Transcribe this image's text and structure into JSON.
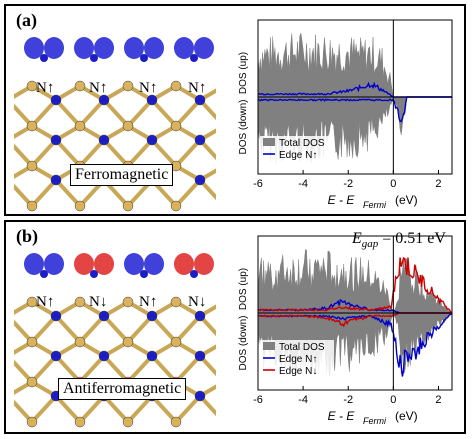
{
  "panels": [
    {
      "label": "(a)",
      "magnetic_label": "Ferromagnetic",
      "spin_labels": [
        "N↑",
        "N↑",
        "N↑",
        "N↑"
      ],
      "lobe_colors": [
        "#2b2bd6",
        "#2b2bd6",
        "#2b2bd6",
        "#2b2bd6"
      ],
      "legend": [
        {
          "label": "Total DOS",
          "color": "#808080"
        },
        {
          "label": "Edge N↑",
          "color": "#0000cc"
        }
      ],
      "egap": ""
    },
    {
      "label": "(b)",
      "magnetic_label": "Antiferromagnetic",
      "spin_labels": [
        "N↑",
        "N↓",
        "N↑",
        "N↓"
      ],
      "lobe_colors": [
        "#2b2bd6",
        "#e03030",
        "#2b2bd6",
        "#e03030"
      ],
      "legend": [
        {
          "label": "Total DOS",
          "color": "#808080"
        },
        {
          "label": "Edge N↑",
          "color": "#0000cc"
        },
        {
          "label": "Edge N↓",
          "color": "#cc0000"
        }
      ],
      "egap": "E_gap = 0.51 eV"
    }
  ],
  "axis": {
    "ylabel_up": "DOS (up)",
    "ylabel_down": "DOS (down)",
    "xlabel_main": "E - E",
    "xlabel_sub": "Fermi",
    "xlabel_unit": "(eV)",
    "egap_main": "E",
    "egap_sub": "gap",
    "egap_value": " = 0.51 eV",
    "ticks": [
      "-6",
      "-4",
      "-2",
      "0",
      "2"
    ]
  },
  "chart_data": [
    {
      "type": "area",
      "title": "",
      "xlabel": "E - E_Fermi (eV)",
      "ylabel": "DOS (up) / DOS (down)",
      "xlim": [
        -6,
        2.6
      ],
      "x_ticks": [
        -6,
        -4,
        -2,
        0,
        2
      ],
      "fermi_line_x": 0,
      "legend_placement": "bottom-left",
      "series": [
        {
          "name": "Total DOS",
          "x": [
            -6,
            -5,
            -4,
            -3,
            -2,
            -1.5,
            -1,
            -0.5,
            -0.1,
            0,
            0.2,
            0.4,
            0.6,
            1,
            2,
            2.6
          ],
          "up": [
            0.8,
            0.85,
            0.9,
            0.88,
            0.86,
            0.8,
            0.85,
            0.7,
            0.3,
            0,
            0,
            0,
            0,
            0,
            0,
            0
          ],
          "down": [
            -0.85,
            -0.9,
            -0.88,
            -0.9,
            -0.85,
            -0.8,
            -0.7,
            -0.5,
            -0.2,
            0,
            -0.3,
            -0.6,
            0,
            0,
            0,
            0
          ]
        },
        {
          "name": "Edge N↑",
          "x": [
            -6,
            -4,
            -3,
            -2,
            -1.5,
            -1,
            -0.5,
            0,
            0.2,
            0.4,
            0.6,
            1,
            2.6
          ],
          "up": [
            0.05,
            0.05,
            0.05,
            0.1,
            0.15,
            0.22,
            0.12,
            0,
            0,
            0,
            0,
            0,
            0
          ],
          "down": [
            -0.05,
            -0.05,
            -0.05,
            -0.05,
            -0.05,
            -0.05,
            -0.05,
            -0.05,
            -0.25,
            -0.45,
            0,
            0,
            0
          ]
        }
      ]
    },
    {
      "type": "area",
      "title": "",
      "xlabel": "E - E_Fermi (eV)",
      "ylabel": "DOS (up) / DOS (down)",
      "xlim": [
        -6,
        2.6
      ],
      "x_ticks": [
        -6,
        -4,
        -2,
        0,
        2
      ],
      "fermi_line_x": 0,
      "gap_eV": 0.51,
      "legend_placement": "bottom-left",
      "series": [
        {
          "name": "Total DOS",
          "x": [
            -6,
            -5,
            -4,
            -3,
            -2,
            -1,
            -0.3,
            0,
            0.2,
            0.35,
            2.6
          ],
          "up": [
            0.75,
            0.8,
            0.85,
            0.85,
            0.8,
            0.7,
            0.4,
            0,
            0.2,
            0.9,
            0
          ],
          "down": [
            -0.75,
            -0.8,
            -0.85,
            -0.85,
            -0.8,
            -0.7,
            -0.4,
            0,
            -0.2,
            -0.9,
            0
          ]
        },
        {
          "name": "Edge N↑",
          "x": [
            -6,
            -4,
            -3,
            -2.5,
            -2.2,
            -2,
            -1,
            -0.1,
            0.3,
            2.6
          ],
          "up": [
            0.05,
            0.05,
            0.08,
            0.15,
            0.2,
            0.15,
            0.05,
            0.05,
            0,
            0
          ],
          "down": [
            -0.05,
            -0.05,
            -0.05,
            -0.08,
            -0.1,
            -0.08,
            -0.05,
            -0.2,
            -0.9,
            0
          ]
        },
        {
          "name": "Edge N↓",
          "x": [
            -6,
            -4,
            -3,
            -2.5,
            -2.2,
            -2,
            -1,
            -0.1,
            0.3,
            2.6
          ],
          "up": [
            0.05,
            0.05,
            0.05,
            0.08,
            0.1,
            0.08,
            0.05,
            0.1,
            0.9,
            0
          ],
          "down": [
            -0.05,
            -0.05,
            -0.08,
            -0.15,
            -0.2,
            -0.15,
            -0.05,
            -0.05,
            0,
            0
          ]
        }
      ]
    }
  ]
}
